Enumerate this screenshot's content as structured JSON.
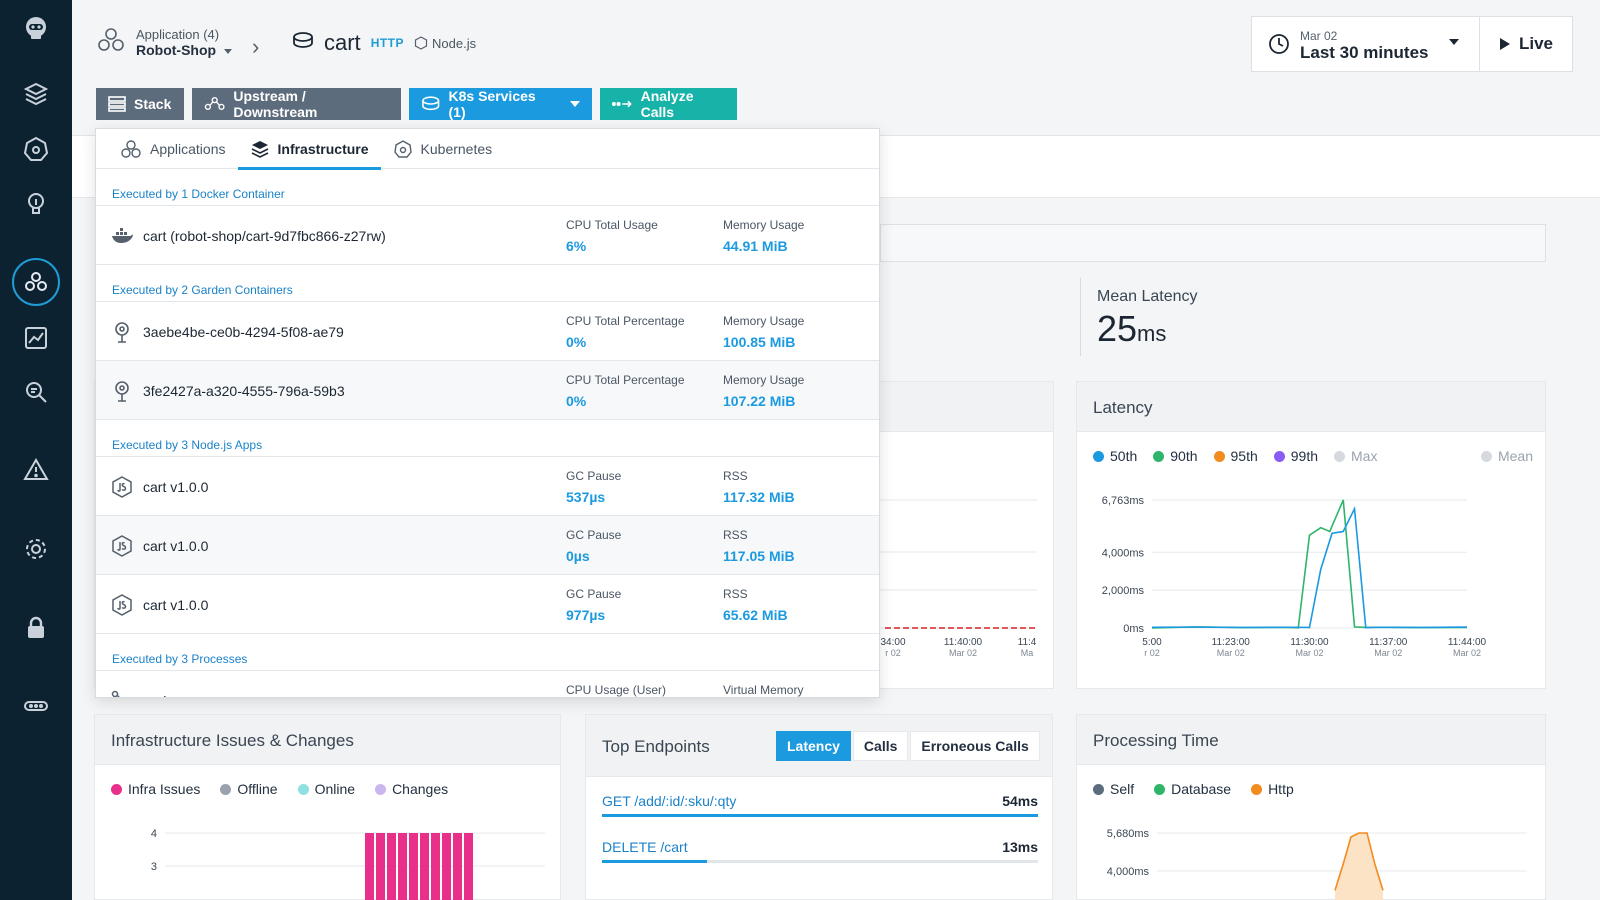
{
  "breadcrumb": {
    "app_count_label": "Application (4)",
    "app_name": "Robot-Shop",
    "chevron": "›"
  },
  "service": {
    "name": "cart",
    "protocol": "HTTP",
    "technology": "Node.js"
  },
  "time": {
    "date": "Mar 02",
    "range": "Last 30 minutes",
    "live_label": "Live"
  },
  "toolbar": {
    "stack": "Stack",
    "upstream": "Upstream / Downstream",
    "k8s": "K8s Services (1)",
    "analyze": "Analyze Calls"
  },
  "popover": {
    "tabs": [
      "Applications",
      "Infrastructure",
      "Kubernetes"
    ],
    "active_tab": "Infrastructure",
    "sections": [
      {
        "title": "Executed by 1 Docker Container"
      },
      {
        "title": "Executed by 2 Garden Containers"
      },
      {
        "title": "Executed by 3 Node.js Apps"
      },
      {
        "title": "Executed by 3 Processes"
      }
    ],
    "rows": [
      {
        "icon": "docker-icon",
        "name": "cart (robot-shop/cart-9d7fbc866-z27rw)",
        "m1_label": "CPU Total Usage",
        "m1_value": "6%",
        "m2_label": "Memory Usage",
        "m2_value": "44.91 MiB"
      },
      {
        "icon": "garden-icon",
        "name": "3aebe4be-ce0b-4294-5f08-ae79",
        "m1_label": "CPU Total Percentage",
        "m1_value": "0%",
        "m2_label": "Memory Usage",
        "m2_value": "100.85 MiB"
      },
      {
        "icon": "garden-icon",
        "name": "3fe2427a-a320-4555-796a-59b3",
        "m1_label": "CPU Total Percentage",
        "m1_value": "0%",
        "m2_label": "Memory Usage",
        "m2_value": "107.22 MiB"
      },
      {
        "icon": "nodejs-icon",
        "name": "cart v1.0.0",
        "m1_label": "GC Pause",
        "m1_value": "537µs",
        "m2_label": "RSS",
        "m2_value": "117.32 MiB"
      },
      {
        "icon": "nodejs-icon",
        "name": "cart v1.0.0",
        "m1_label": "GC Pause",
        "m1_value": "0µs",
        "m2_label": "RSS",
        "m2_value": "117.05 MiB"
      },
      {
        "icon": "nodejs-icon",
        "name": "cart v1.0.0",
        "m1_label": "GC Pause",
        "m1_value": "977µs",
        "m2_label": "RSS",
        "m2_value": "65.62 MiB"
      },
      {
        "icon": "process-icon",
        "name": "node",
        "m1_label": "CPU Usage (User)",
        "m1_value": "",
        "m2_label": "Virtual Memory",
        "m2_value": ""
      }
    ]
  },
  "mean_latency": {
    "label": "Mean Latency",
    "value": "25",
    "unit": "ms"
  },
  "hidden_chart": {
    "tick_labels": [
      {
        "time": "34:00",
        "date": "r 02"
      },
      {
        "time": "11:40:00",
        "date": "Mar 02"
      },
      {
        "time": "11:4",
        "date": "Ma"
      }
    ]
  },
  "latency_card": {
    "title": "Latency",
    "legend": [
      {
        "name": "50th",
        "color": "#1b9ae0"
      },
      {
        "name": "90th",
        "color": "#2fb56a"
      },
      {
        "name": "95th",
        "color": "#f28c1e"
      },
      {
        "name": "99th",
        "color": "#8a5cf5"
      },
      {
        "name": "Max",
        "color": "#d6d9dd"
      },
      {
        "name": "Mean",
        "color": "#d6d9dd"
      }
    ],
    "chart_data": {
      "type": "line",
      "y_tick_labels": [
        "6,763ms",
        "4,000ms",
        "2,000ms",
        "0ms"
      ],
      "y_ticks": [
        6763,
        4000,
        2000,
        0
      ],
      "ylim": [
        0,
        6763
      ],
      "x_tick_labels": [
        {
          "time": "5:00",
          "date": "r 02"
        },
        {
          "time": "11:23:00",
          "date": "Mar 02"
        },
        {
          "time": "11:30:00",
          "date": "Mar 02"
        },
        {
          "time": "11:37:00",
          "date": "Mar 02"
        },
        {
          "time": "11:44:00",
          "date": "Mar 02"
        }
      ],
      "x_minutes": [
        0,
        7,
        14,
        21,
        28
      ],
      "series": [
        {
          "name": "90th",
          "color": "#2fb56a",
          "x": [
            0,
            4,
            8,
            12,
            13,
            14,
            15,
            15.8,
            17,
            18,
            19,
            20,
            24,
            28
          ],
          "y": [
            0,
            60,
            20,
            30,
            10,
            4900,
            5300,
            5100,
            6763,
            60,
            30,
            40,
            20,
            30
          ]
        },
        {
          "name": "50th",
          "color": "#1b9ae0",
          "x": [
            0,
            4,
            8,
            12,
            14,
            15,
            16,
            17,
            18,
            19,
            20,
            24,
            28
          ],
          "y": [
            40,
            50,
            30,
            40,
            30,
            3100,
            5000,
            5100,
            6300,
            20,
            40,
            30,
            50
          ]
        }
      ]
    }
  },
  "infra_card": {
    "title": "Infrastructure Issues & Changes",
    "legend": [
      {
        "name": "Infra Issues",
        "color": "#e8308a"
      },
      {
        "name": "Offline",
        "color": "#9aa3ad"
      },
      {
        "name": "Online",
        "color": "#8fe0e0"
      },
      {
        "name": "Changes",
        "color": "#c9b6ef"
      }
    ],
    "chart_data": {
      "type": "bar",
      "y_tick_labels": [
        "4",
        "3"
      ],
      "y_ticks": [
        4,
        3
      ],
      "bar_count": 10,
      "values": [
        4,
        4,
        4,
        4,
        4,
        4,
        4,
        4,
        4,
        4
      ]
    }
  },
  "endpoints_card": {
    "title": "Top Endpoints",
    "tabs": [
      "Latency",
      "Calls",
      "Erroneous Calls"
    ],
    "active_tab": "Latency",
    "items": [
      {
        "name": "GET /add/:id/:sku/:qty",
        "value": "54ms",
        "fraction": 1.0
      },
      {
        "name": "DELETE /cart",
        "value": "13ms",
        "fraction": 0.24
      }
    ]
  },
  "processing_card": {
    "title": "Processing Time",
    "legend": [
      {
        "name": "Self",
        "color": "#5d6c7c"
      },
      {
        "name": "Database",
        "color": "#2fb56a"
      },
      {
        "name": "Http",
        "color": "#f28c1e"
      }
    ],
    "chart_data": {
      "type": "area",
      "y_tick_labels": [
        "5,680ms",
        "4,000ms"
      ],
      "y_ticks": [
        5680,
        4000
      ],
      "series": [
        {
          "name": "Http",
          "color": "#f28c1e",
          "x": [
            0,
            1,
            2,
            3,
            4,
            5,
            6
          ],
          "y": [
            3000,
            4200,
            5500,
            5680,
            5680,
            4200,
            3000
          ]
        }
      ]
    }
  },
  "sidebar": {
    "items": [
      "robot-icon",
      "layers-icon",
      "kubernetes-icon",
      "lightbulb-icon",
      "applications-icon",
      "analytics-icon",
      "search-icon",
      "warning-icon",
      "gear-icon",
      "lock-icon",
      "more-icon"
    ],
    "active": "applications-icon"
  }
}
